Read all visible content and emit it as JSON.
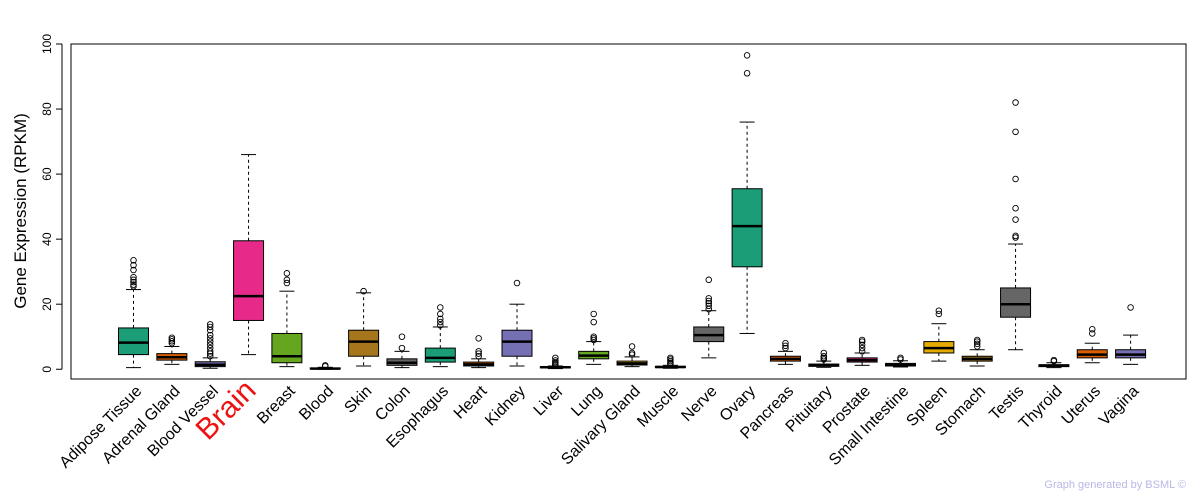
{
  "chart_data": {
    "type": "box",
    "ylabel": "Gene Expression (RPKM)",
    "ylim": [
      -3,
      100
    ],
    "yticks": [
      0,
      20,
      40,
      60,
      80,
      100
    ],
    "highlight": "Brain",
    "highlight_color": "#ee1111",
    "credit": "Graph generated by BSML ©",
    "categories": [
      "Adipose Tissue",
      "Adrenal Gland",
      "Blood Vessel",
      "Brain",
      "Breast",
      "Blood",
      "Skin",
      "Colon",
      "Esophagus",
      "Heart",
      "Kidney",
      "Liver",
      "Lung",
      "Salivary Gland",
      "Muscle",
      "Nerve",
      "Ovary",
      "Pancreas",
      "Pituitary",
      "Prostate",
      "Small Intestine",
      "Spleen",
      "Stomach",
      "Testis",
      "Thyroid",
      "Uterus",
      "Vagina"
    ],
    "colors": [
      "#1b9e77",
      "#d95f02",
      "#7570b3",
      "#e7298a",
      "#66a61e",
      "#e6ab02",
      "#a6761d",
      "#666666",
      "#1b9e77",
      "#d95f02",
      "#7570b3",
      "#e7298a",
      "#66a61e",
      "#e6ab02",
      "#a6761d",
      "#666666",
      "#1b9e77",
      "#d95f02",
      "#7570b3",
      "#e7298a",
      "#66a61e",
      "#e6ab02",
      "#a6761d",
      "#666666",
      "#1b9e77",
      "#d95f02",
      "#7570b3"
    ],
    "boxes": [
      {
        "min": 0.5,
        "q1": 4.5,
        "median": 8.2,
        "q3": 12.7,
        "max": 24.5,
        "outliers": [
          25.5,
          26.0,
          26.8,
          27.5,
          28.3,
          30.5,
          32.0,
          33.5
        ]
      },
      {
        "min": 1.5,
        "q1": 2.8,
        "median": 3.7,
        "q3": 4.8,
        "max": 7.0,
        "outliers": [
          8.0,
          8.6,
          9.2,
          9.7
        ]
      },
      {
        "min": 0.3,
        "q1": 0.8,
        "median": 1.4,
        "q3": 2.3,
        "max": 3.5,
        "outliers": [
          4.0,
          4.8,
          5.5,
          6.5,
          7.5,
          8.5,
          9.5,
          10.5,
          12.0,
          13.0,
          13.8
        ]
      },
      {
        "min": 4.5,
        "q1": 15.0,
        "median": 22.5,
        "q3": 39.5,
        "max": 66.0,
        "outliers": []
      },
      {
        "min": 0.8,
        "q1": 2.0,
        "median": 4.0,
        "q3": 11.0,
        "max": 24.0,
        "outliers": [
          26.5,
          27.5,
          29.5
        ]
      },
      {
        "min": 0.0,
        "q1": 0.1,
        "median": 0.2,
        "q3": 0.4,
        "max": 0.6,
        "outliers": [
          0.9,
          1.2
        ]
      },
      {
        "min": 1.0,
        "q1": 4.0,
        "median": 8.5,
        "q3": 12.0,
        "max": 23.5,
        "outliers": [
          24.0
        ]
      },
      {
        "min": 0.5,
        "q1": 1.2,
        "median": 2.0,
        "q3": 3.2,
        "max": 5.5,
        "outliers": [
          6.5,
          10.0
        ]
      },
      {
        "min": 0.8,
        "q1": 2.2,
        "median": 3.5,
        "q3": 6.5,
        "max": 13.0,
        "outliers": [
          13.5,
          14.5,
          15.5,
          17.0,
          19.0
        ]
      },
      {
        "min": 0.5,
        "q1": 1.0,
        "median": 1.5,
        "q3": 2.2,
        "max": 3.2,
        "outliers": [
          4.0,
          4.8,
          5.5,
          9.5
        ]
      },
      {
        "min": 1.0,
        "q1": 4.0,
        "median": 8.5,
        "q3": 12.0,
        "max": 20.0,
        "outliers": [
          26.5
        ]
      },
      {
        "min": 0.2,
        "q1": 0.4,
        "median": 0.6,
        "q3": 0.8,
        "max": 1.0,
        "outliers": [
          1.2,
          1.5,
          1.8,
          2.2,
          2.7,
          3.5
        ]
      },
      {
        "min": 1.5,
        "q1": 3.2,
        "median": 4.2,
        "q3": 5.5,
        "max": 8.5,
        "outliers": [
          9.0,
          9.5,
          10.0,
          14.5,
          17.0
        ]
      },
      {
        "min": 0.8,
        "q1": 1.3,
        "median": 1.8,
        "q3": 2.5,
        "max": 3.8,
        "outliers": [
          4.5,
          5.0,
          7.0
        ]
      },
      {
        "min": 0.3,
        "q1": 0.5,
        "median": 0.7,
        "q3": 0.9,
        "max": 1.2,
        "outliers": [
          1.6,
          2.0,
          2.5,
          3.0,
          3.5
        ]
      },
      {
        "min": 3.5,
        "q1": 8.5,
        "median": 10.5,
        "q3": 13.0,
        "max": 18.0,
        "outliers": [
          18.5,
          19.5,
          20.3,
          21.0,
          21.8,
          27.5
        ]
      },
      {
        "min": 11.0,
        "q1": 31.5,
        "median": 44.0,
        "q3": 55.5,
        "max": 76.0,
        "outliers": [
          91.0,
          96.5
        ]
      },
      {
        "min": 1.5,
        "q1": 2.5,
        "median": 3.2,
        "q3": 4.0,
        "max": 5.5,
        "outliers": [
          6.5,
          7.2,
          8.0
        ]
      },
      {
        "min": 0.6,
        "q1": 0.9,
        "median": 1.2,
        "q3": 1.6,
        "max": 2.5,
        "outliers": [
          3.0,
          3.5,
          4.0,
          5.0
        ]
      },
      {
        "min": 1.2,
        "q1": 2.2,
        "median": 2.8,
        "q3": 3.5,
        "max": 5.0,
        "outliers": [
          5.5,
          6.5,
          7.5,
          8.5,
          9.0
        ]
      },
      {
        "min": 0.7,
        "q1": 1.0,
        "median": 1.3,
        "q3": 1.8,
        "max": 2.6,
        "outliers": [
          3.0,
          3.5
        ]
      },
      {
        "min": 2.5,
        "q1": 5.0,
        "median": 6.5,
        "q3": 8.5,
        "max": 14.0,
        "outliers": [
          17.0,
          18.0
        ]
      },
      {
        "min": 1.0,
        "q1": 2.5,
        "median": 3.2,
        "q3": 4.0,
        "max": 6.0,
        "outliers": [
          7.0,
          7.8,
          8.5,
          9.0
        ]
      },
      {
        "min": 6.0,
        "q1": 16.0,
        "median": 20.0,
        "q3": 25.0,
        "max": 38.5,
        "outliers": [
          40.5,
          41.0,
          46.0,
          49.5,
          58.5,
          73.0,
          82.0
        ]
      },
      {
        "min": 0.5,
        "q1": 0.8,
        "median": 1.1,
        "q3": 1.4,
        "max": 2.0,
        "outliers": [
          2.5,
          2.8
        ]
      },
      {
        "min": 2.0,
        "q1": 3.5,
        "median": 4.5,
        "q3": 6.0,
        "max": 8.0,
        "outliers": [
          11.0,
          12.3
        ]
      },
      {
        "min": 1.5,
        "q1": 3.5,
        "median": 4.5,
        "q3": 6.0,
        "max": 10.5,
        "outliers": [
          19.0
        ]
      }
    ]
  }
}
